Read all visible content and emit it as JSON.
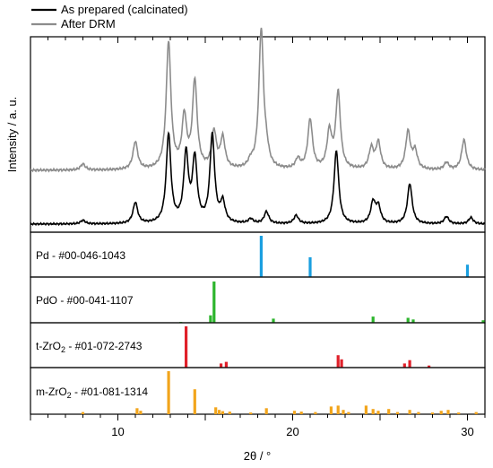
{
  "chart_data": {
    "type": "line",
    "xlabel": "2θ / °",
    "ylabel": "Intensity / a. u.",
    "xlim": [
      5,
      31
    ],
    "x_ticks": [
      10,
      20,
      30
    ],
    "legend_position": "top-left, outside plot",
    "series": [
      {
        "name": "As prepared (calcinated)",
        "color": "#000000",
        "peaks": [
          {
            "x": 8.0,
            "h": 0.04
          },
          {
            "x": 11.0,
            "h": 0.23
          },
          {
            "x": 12.9,
            "h": 0.97
          },
          {
            "x": 13.9,
            "h": 0.74
          },
          {
            "x": 14.4,
            "h": 0.69
          },
          {
            "x": 15.4,
            "h": 0.96
          },
          {
            "x": 16.0,
            "h": 0.22
          },
          {
            "x": 17.6,
            "h": 0.05
          },
          {
            "x": 18.5,
            "h": 0.13
          },
          {
            "x": 20.2,
            "h": 0.09
          },
          {
            "x": 22.5,
            "h": 0.8
          },
          {
            "x": 24.6,
            "h": 0.23
          },
          {
            "x": 24.9,
            "h": 0.18
          },
          {
            "x": 26.7,
            "h": 0.44
          },
          {
            "x": 28.8,
            "h": 0.08
          },
          {
            "x": 30.2,
            "h": 0.07
          }
        ]
      },
      {
        "name": "After DRM",
        "color": "#8c8c8c",
        "peaks": [
          {
            "x": 8.0,
            "h": 0.05
          },
          {
            "x": 11.0,
            "h": 0.23
          },
          {
            "x": 12.9,
            "h": 1.05
          },
          {
            "x": 13.8,
            "h": 0.42
          },
          {
            "x": 14.4,
            "h": 0.72
          },
          {
            "x": 15.5,
            "h": 0.3
          },
          {
            "x": 16.0,
            "h": 0.25
          },
          {
            "x": 17.6,
            "h": 0.05
          },
          {
            "x": 18.2,
            "h": 1.15
          },
          {
            "x": 18.5,
            "h": 0.1
          },
          {
            "x": 20.3,
            "h": 0.08
          },
          {
            "x": 21.0,
            "h": 0.41
          },
          {
            "x": 22.1,
            "h": 0.3
          },
          {
            "x": 22.6,
            "h": 0.63
          },
          {
            "x": 24.5,
            "h": 0.17
          },
          {
            "x": 24.9,
            "h": 0.22
          },
          {
            "x": 26.6,
            "h": 0.31
          },
          {
            "x": 27.0,
            "h": 0.15
          },
          {
            "x": 28.8,
            "h": 0.06
          },
          {
            "x": 29.8,
            "h": 0.25
          }
        ]
      }
    ],
    "reference_panels": [
      {
        "label": "Pd - #00-046-1043",
        "label_main": "Pd - #00-046-1043",
        "label_sub": "",
        "label_tail": "",
        "color": "#1a9fe0",
        "lines": [
          {
            "x": 18.2,
            "h": 1.0
          },
          {
            "x": 21.0,
            "h": 0.48
          },
          {
            "x": 30.0,
            "h": 0.3
          }
        ]
      },
      {
        "label": "PdO - #00-041-1107",
        "label_main": "PdO - #00-041-1107",
        "label_sub": "",
        "label_tail": "",
        "color": "#2db52d",
        "lines": [
          {
            "x": 15.3,
            "h": 0.18
          },
          {
            "x": 15.5,
            "h": 1.0
          },
          {
            "x": 18.9,
            "h": 0.1
          },
          {
            "x": 24.6,
            "h": 0.15
          },
          {
            "x": 26.6,
            "h": 0.12
          },
          {
            "x": 26.9,
            "h": 0.08
          },
          {
            "x": 30.9,
            "h": 0.06
          },
          {
            "x": 13.6,
            "h": 0.02
          }
        ]
      },
      {
        "label": "t-ZrO2 - #01-072-2743",
        "label_main": "t-ZrO",
        "label_sub": "2",
        "label_tail": " - #01-072-2743",
        "color": "#e0202a",
        "lines": [
          {
            "x": 13.9,
            "h": 1.0
          },
          {
            "x": 15.9,
            "h": 0.1
          },
          {
            "x": 16.2,
            "h": 0.14
          },
          {
            "x": 22.6,
            "h": 0.3
          },
          {
            "x": 22.8,
            "h": 0.2
          },
          {
            "x": 26.4,
            "h": 0.1
          },
          {
            "x": 26.7,
            "h": 0.18
          },
          {
            "x": 27.8,
            "h": 0.05
          }
        ]
      },
      {
        "label": "m-ZrO2 - #01-081-1314",
        "label_main": "m-ZrO",
        "label_sub": "2",
        "label_tail": " - #01-081-1314",
        "color": "#f2a51c",
        "lines": [
          {
            "x": 8.0,
            "h": 0.05
          },
          {
            "x": 11.1,
            "h": 0.14
          },
          {
            "x": 11.3,
            "h": 0.08
          },
          {
            "x": 12.9,
            "h": 1.0
          },
          {
            "x": 14.4,
            "h": 0.58
          },
          {
            "x": 15.6,
            "h": 0.16
          },
          {
            "x": 15.8,
            "h": 0.1
          },
          {
            "x": 16.0,
            "h": 0.07
          },
          {
            "x": 16.4,
            "h": 0.06
          },
          {
            "x": 17.6,
            "h": 0.04
          },
          {
            "x": 18.5,
            "h": 0.14
          },
          {
            "x": 20.1,
            "h": 0.08
          },
          {
            "x": 20.5,
            "h": 0.06
          },
          {
            "x": 21.3,
            "h": 0.05
          },
          {
            "x": 22.2,
            "h": 0.18
          },
          {
            "x": 22.6,
            "h": 0.2
          },
          {
            "x": 22.9,
            "h": 0.1
          },
          {
            "x": 23.2,
            "h": 0.05
          },
          {
            "x": 24.2,
            "h": 0.2
          },
          {
            "x": 24.6,
            "h": 0.12
          },
          {
            "x": 24.9,
            "h": 0.08
          },
          {
            "x": 25.5,
            "h": 0.12
          },
          {
            "x": 26.0,
            "h": 0.05
          },
          {
            "x": 26.7,
            "h": 0.1
          },
          {
            "x": 27.2,
            "h": 0.05
          },
          {
            "x": 28.0,
            "h": 0.04
          },
          {
            "x": 28.5,
            "h": 0.08
          },
          {
            "x": 28.9,
            "h": 0.1
          },
          {
            "x": 29.5,
            "h": 0.04
          },
          {
            "x": 30.5,
            "h": 0.05
          }
        ]
      }
    ]
  }
}
